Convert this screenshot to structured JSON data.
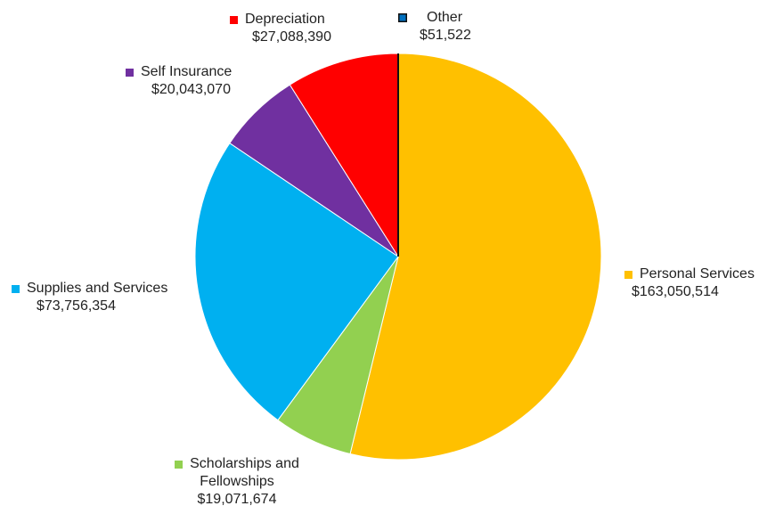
{
  "chart_data": {
    "type": "pie",
    "slices": [
      {
        "label": "Personal Services",
        "value_text": "$163,050,514",
        "value": 163050514,
        "color": "#FFC000"
      },
      {
        "label": "Scholarships and Fellowships",
        "label_lines": [
          "Scholarships and",
          "Fellowships"
        ],
        "value_text": "$19,071,674",
        "value": 19071674,
        "color": "#92D050"
      },
      {
        "label": "Supplies and Services",
        "value_text": "$73,756,354",
        "value": 73756354,
        "color": "#00B0F0"
      },
      {
        "label": "Self Insurance",
        "value_text": "$20,043,070",
        "value": 20043070,
        "color": "#7030A0"
      },
      {
        "label": "Depreciation",
        "value_text": "$27,088,390",
        "value": 27088390,
        "color": "#FF0000"
      },
      {
        "label": "Other",
        "value_text": "$51,522",
        "value": 51522,
        "color": "#0070C0"
      }
    ],
    "start_angle": "12 o'clock, clockwise"
  }
}
